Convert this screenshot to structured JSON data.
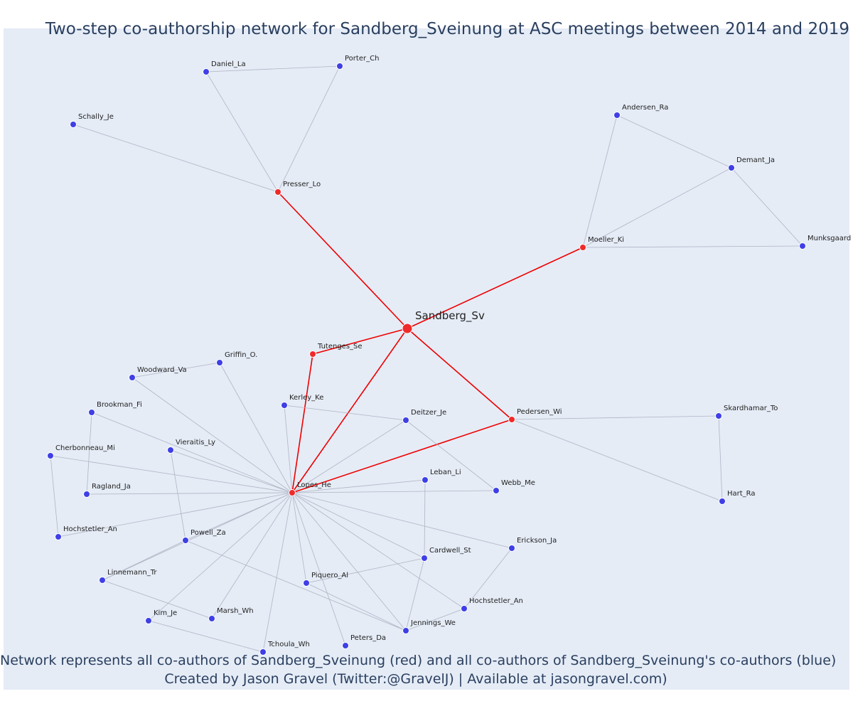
{
  "title": "Two-step co-authorship network for Sandberg_Sveinung at ASC meetings between 2014 and 2019",
  "footer": {
    "line1": "Network represents all co-authors of Sandberg_Sveinung (red) and all co-authors of Sandberg_Sveinung's co-authors (blue)",
    "line2": "Created by Jason Gravel (Twitter:@GravelJ) | Available at jasongravel.com)"
  },
  "colors": {
    "background": "#e5ecf6",
    "red": "#ef2a2a",
    "blue": "#3f3fe6",
    "red_edge": "#ee0000",
    "gray_edge": "#b0b4c4",
    "text": "#2a3f5f"
  },
  "center": "Sandberg_Sv",
  "red_nodes": [
    "Presser_Lo",
    "Moeller_Ki",
    "Tutenges_Se",
    "Lopes_He",
    "Pedersen_Wi"
  ],
  "blue_nodes": [
    "Daniel_La",
    "Porter_Ch",
    "Schally_Je",
    "Andersen_Ra",
    "Demant_Ja",
    "Munksgaard",
    "Griffin_O.",
    "Woodward_Va",
    "Kerley_Ke",
    "Deitzer_Je",
    "Skardhamar_To",
    "Brookman_Fi",
    "Vieraitis_Ly",
    "Cherbonneau_Mi",
    "Leban_Li",
    "Webb_Me",
    "Ragland_Ja",
    "Hart_Ra",
    "Hochstetler_An",
    "Powell_Za",
    "Erickson_Ja",
    "Cardwell_St",
    "Linnemann_Tr",
    "Piquero_Al",
    "Hochstetler_An#2",
    "Kim_Je",
    "Marsh_Wh",
    "Jennings_We",
    "Peters_Da",
    "Tchoula_Wh"
  ],
  "edges": [
    [
      "Sandberg_Sv",
      "Presser_Lo"
    ],
    [
      "Sandberg_Sv",
      "Moeller_Ki"
    ],
    [
      "Sandberg_Sv",
      "Tutenges_Se"
    ],
    [
      "Sandberg_Sv",
      "Lopes_He"
    ],
    [
      "Sandberg_Sv",
      "Pedersen_Wi"
    ],
    [
      "Tutenges_Se",
      "Lopes_He"
    ],
    [
      "Lopes_He",
      "Pedersen_Wi"
    ],
    [
      "Presser_Lo",
      "Daniel_La"
    ],
    [
      "Presser_Lo",
      "Porter_Ch"
    ],
    [
      "Daniel_La",
      "Porter_Ch"
    ],
    [
      "Presser_Lo",
      "Schally_Je"
    ],
    [
      "Moeller_Ki",
      "Andersen_Ra"
    ],
    [
      "Moeller_Ki",
      "Demant_Ja"
    ],
    [
      "Moeller_Ki",
      "Munksgaard"
    ],
    [
      "Andersen_Ra",
      "Demant_Ja"
    ],
    [
      "Demant_Ja",
      "Munksgaard"
    ],
    [
      "Pedersen_Wi",
      "Skardhamar_To"
    ],
    [
      "Pedersen_Wi",
      "Hart_Ra"
    ],
    [
      "Skardhamar_To",
      "Hart_Ra"
    ],
    [
      "Woodward_Va",
      "Griffin_O."
    ],
    [
      "Lopes_He",
      "Griffin_O."
    ],
    [
      "Lopes_He",
      "Woodward_Va"
    ],
    [
      "Lopes_He",
      "Kerley_Ke"
    ],
    [
      "Kerley_Ke",
      "Deitzer_Je"
    ],
    [
      "Lopes_He",
      "Deitzer_Je"
    ],
    [
      "Deitzer_Je",
      "Webb_Me"
    ],
    [
      "Lopes_He",
      "Brookman_Fi"
    ],
    [
      "Brookman_Fi",
      "Ragland_Ja"
    ],
    [
      "Lopes_He",
      "Vieraitis_Ly"
    ],
    [
      "Vieraitis_Ly",
      "Powell_Za"
    ],
    [
      "Lopes_He",
      "Cherbonneau_Mi"
    ],
    [
      "Cherbonneau_Mi",
      "Hochstetler_An"
    ],
    [
      "Lopes_He",
      "Leban_Li"
    ],
    [
      "Leban_Li",
      "Cardwell_St"
    ],
    [
      "Lopes_He",
      "Webb_Me"
    ],
    [
      "Lopes_He",
      "Ragland_Ja"
    ],
    [
      "Lopes_He",
      "Hochstetler_An"
    ],
    [
      "Lopes_He",
      "Powell_Za"
    ],
    [
      "Powell_Za",
      "Linnemann_Tr"
    ],
    [
      "Powell_Za",
      "Jennings_We"
    ],
    [
      "Lopes_He",
      "Erickson_Ja"
    ],
    [
      "Erickson_Ja",
      "Hochstetler_An#2"
    ],
    [
      "Lopes_He",
      "Cardwell_St"
    ],
    [
      "Cardwell_St",
      "Piquero_Al"
    ],
    [
      "Cardwell_St",
      "Jennings_We"
    ],
    [
      "Lopes_He",
      "Linnemann_Tr"
    ],
    [
      "Linnemann_Tr",
      "Marsh_Wh"
    ],
    [
      "Lopes_He",
      "Piquero_Al"
    ],
    [
      "Piquero_Al",
      "Jennings_We"
    ],
    [
      "Lopes_He",
      "Hochstetler_An#2"
    ],
    [
      "Hochstetler_An#2",
      "Jennings_We"
    ],
    [
      "Lopes_He",
      "Kim_Je"
    ],
    [
      "Kim_Je",
      "Tchoula_Wh"
    ],
    [
      "Lopes_He",
      "Marsh_Wh"
    ],
    [
      "Lopes_He",
      "Jennings_We"
    ],
    [
      "Lopes_He",
      "Peters_Da"
    ],
    [
      "Lopes_He",
      "Tchoula_Wh"
    ]
  ]
}
